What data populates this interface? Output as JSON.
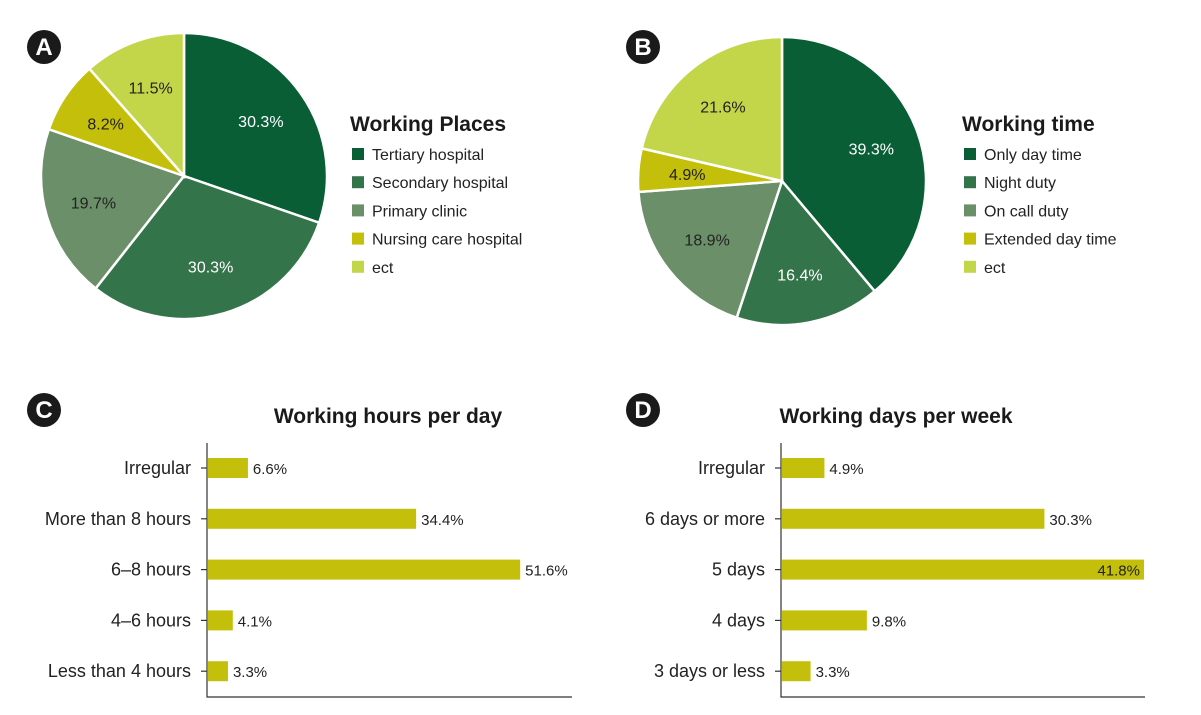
{
  "colors": {
    "dark_green": "#0a5e36",
    "mid_green": "#34744a",
    "sage": "#6b8f68",
    "olive": "#c4bf0a",
    "light_green": "#c3d64a",
    "bar": "#c4bf0a"
  },
  "chart_data": [
    {
      "panel": "A",
      "type": "pie",
      "title": "Working Places",
      "categories": [
        "Tertiary hospital",
        "Secondary hospital",
        "Primary clinic",
        "Nursing care hospital",
        "ect"
      ],
      "values": [
        30.3,
        30.3,
        19.7,
        8.2,
        11.5
      ],
      "labels": [
        "30.3%",
        "30.3%",
        "19.7%",
        "8.2%",
        "11.5%"
      ],
      "colors": [
        "#0a5e36",
        "#34744a",
        "#6b8f68",
        "#c4bf0a",
        "#c3d64a"
      ],
      "label_colors": [
        "#ffffff",
        "#ffffff",
        "#222222",
        "#222222",
        "#222222"
      ],
      "legend": "right"
    },
    {
      "panel": "B",
      "type": "pie",
      "title": "Working time",
      "categories": [
        "Only day time",
        "Night duty",
        "On call duty",
        "Extended day time",
        "ect"
      ],
      "values": [
        39.3,
        16.4,
        18.9,
        4.9,
        21.6
      ],
      "labels": [
        "39.3%",
        "16.4%",
        "18.9%",
        "4.9%",
        "21.6%"
      ],
      "colors": [
        "#0a5e36",
        "#34744a",
        "#6b8f68",
        "#c4bf0a",
        "#c3d64a"
      ],
      "label_colors": [
        "#ffffff",
        "#ffffff",
        "#222222",
        "#222222",
        "#222222"
      ],
      "legend": "right"
    },
    {
      "panel": "C",
      "type": "bar",
      "orientation": "horizontal",
      "title": "Working hours per day",
      "categories": [
        "Irregular",
        "More than 8 hours",
        "6–8 hours",
        "4–6 hours",
        "Less than 4 hours"
      ],
      "values": [
        6.6,
        34.4,
        51.6,
        4.1,
        3.3
      ],
      "labels": [
        "6.6%",
        "34.4%",
        "51.6%",
        "4.1%",
        "3.3%"
      ],
      "xlim": [
        0,
        60
      ]
    },
    {
      "panel": "D",
      "type": "bar",
      "orientation": "horizontal",
      "title": "Working days per week",
      "categories": [
        "Irregular",
        "6 days or more",
        "5 days",
        "4 days",
        "3 days or less"
      ],
      "values": [
        4.9,
        30.3,
        41.8,
        9.8,
        3.3
      ],
      "labels": [
        "4.9%",
        "30.3%",
        "41.8%",
        "9.8%",
        "3.3%"
      ],
      "xlim": [
        0,
        41.8
      ]
    }
  ]
}
